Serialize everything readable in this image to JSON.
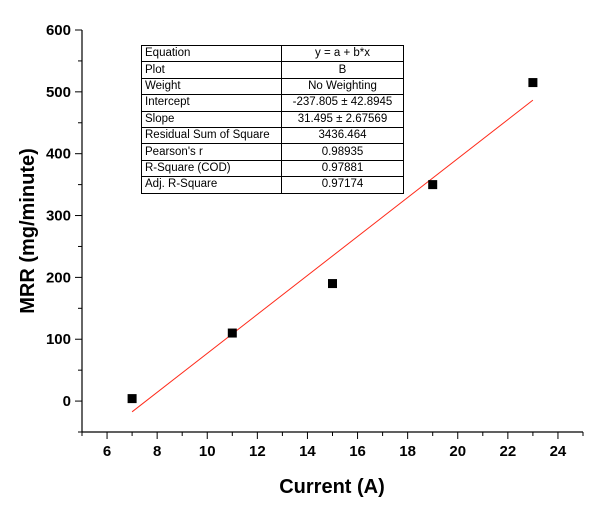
{
  "chart_data": {
    "type": "scatter",
    "xlabel": "Current (A)",
    "ylabel": "MRR (mg/minute)",
    "xlim": [
      5,
      25
    ],
    "ylim": [
      -50,
      600
    ],
    "xticks": [
      6,
      8,
      10,
      12,
      14,
      16,
      18,
      20,
      22,
      24
    ],
    "yticks": [
      0,
      100,
      200,
      300,
      400,
      500,
      600
    ],
    "points": [
      {
        "x": 7,
        "y": 4
      },
      {
        "x": 11,
        "y": 110
      },
      {
        "x": 15,
        "y": 190
      },
      {
        "x": 19,
        "y": 350
      },
      {
        "x": 23,
        "y": 515
      }
    ],
    "fit_line": {
      "intercept": -237.805,
      "slope": 31.495,
      "x_range": [
        7,
        23
      ],
      "color": "#ff2a1a"
    },
    "marker_color": "#000000",
    "grid": false,
    "stats_table": [
      {
        "key": "Equation",
        "value": "y = a + b*x"
      },
      {
        "key": "Plot",
        "value": "B"
      },
      {
        "key": "Weight",
        "value": "No Weighting"
      },
      {
        "key": "Intercept",
        "value": "-237.805 ± 42.8945"
      },
      {
        "key": "Slope",
        "value": "31.495 ± 2.67569"
      },
      {
        "key": "Residual Sum of Square",
        "value": "3436.464"
      },
      {
        "key": "Pearson's r",
        "value": "0.98935"
      },
      {
        "key": "R-Square (COD)",
        "value": "0.97881"
      },
      {
        "key": "Adj. R-Square",
        "value": "0.97174"
      }
    ]
  }
}
